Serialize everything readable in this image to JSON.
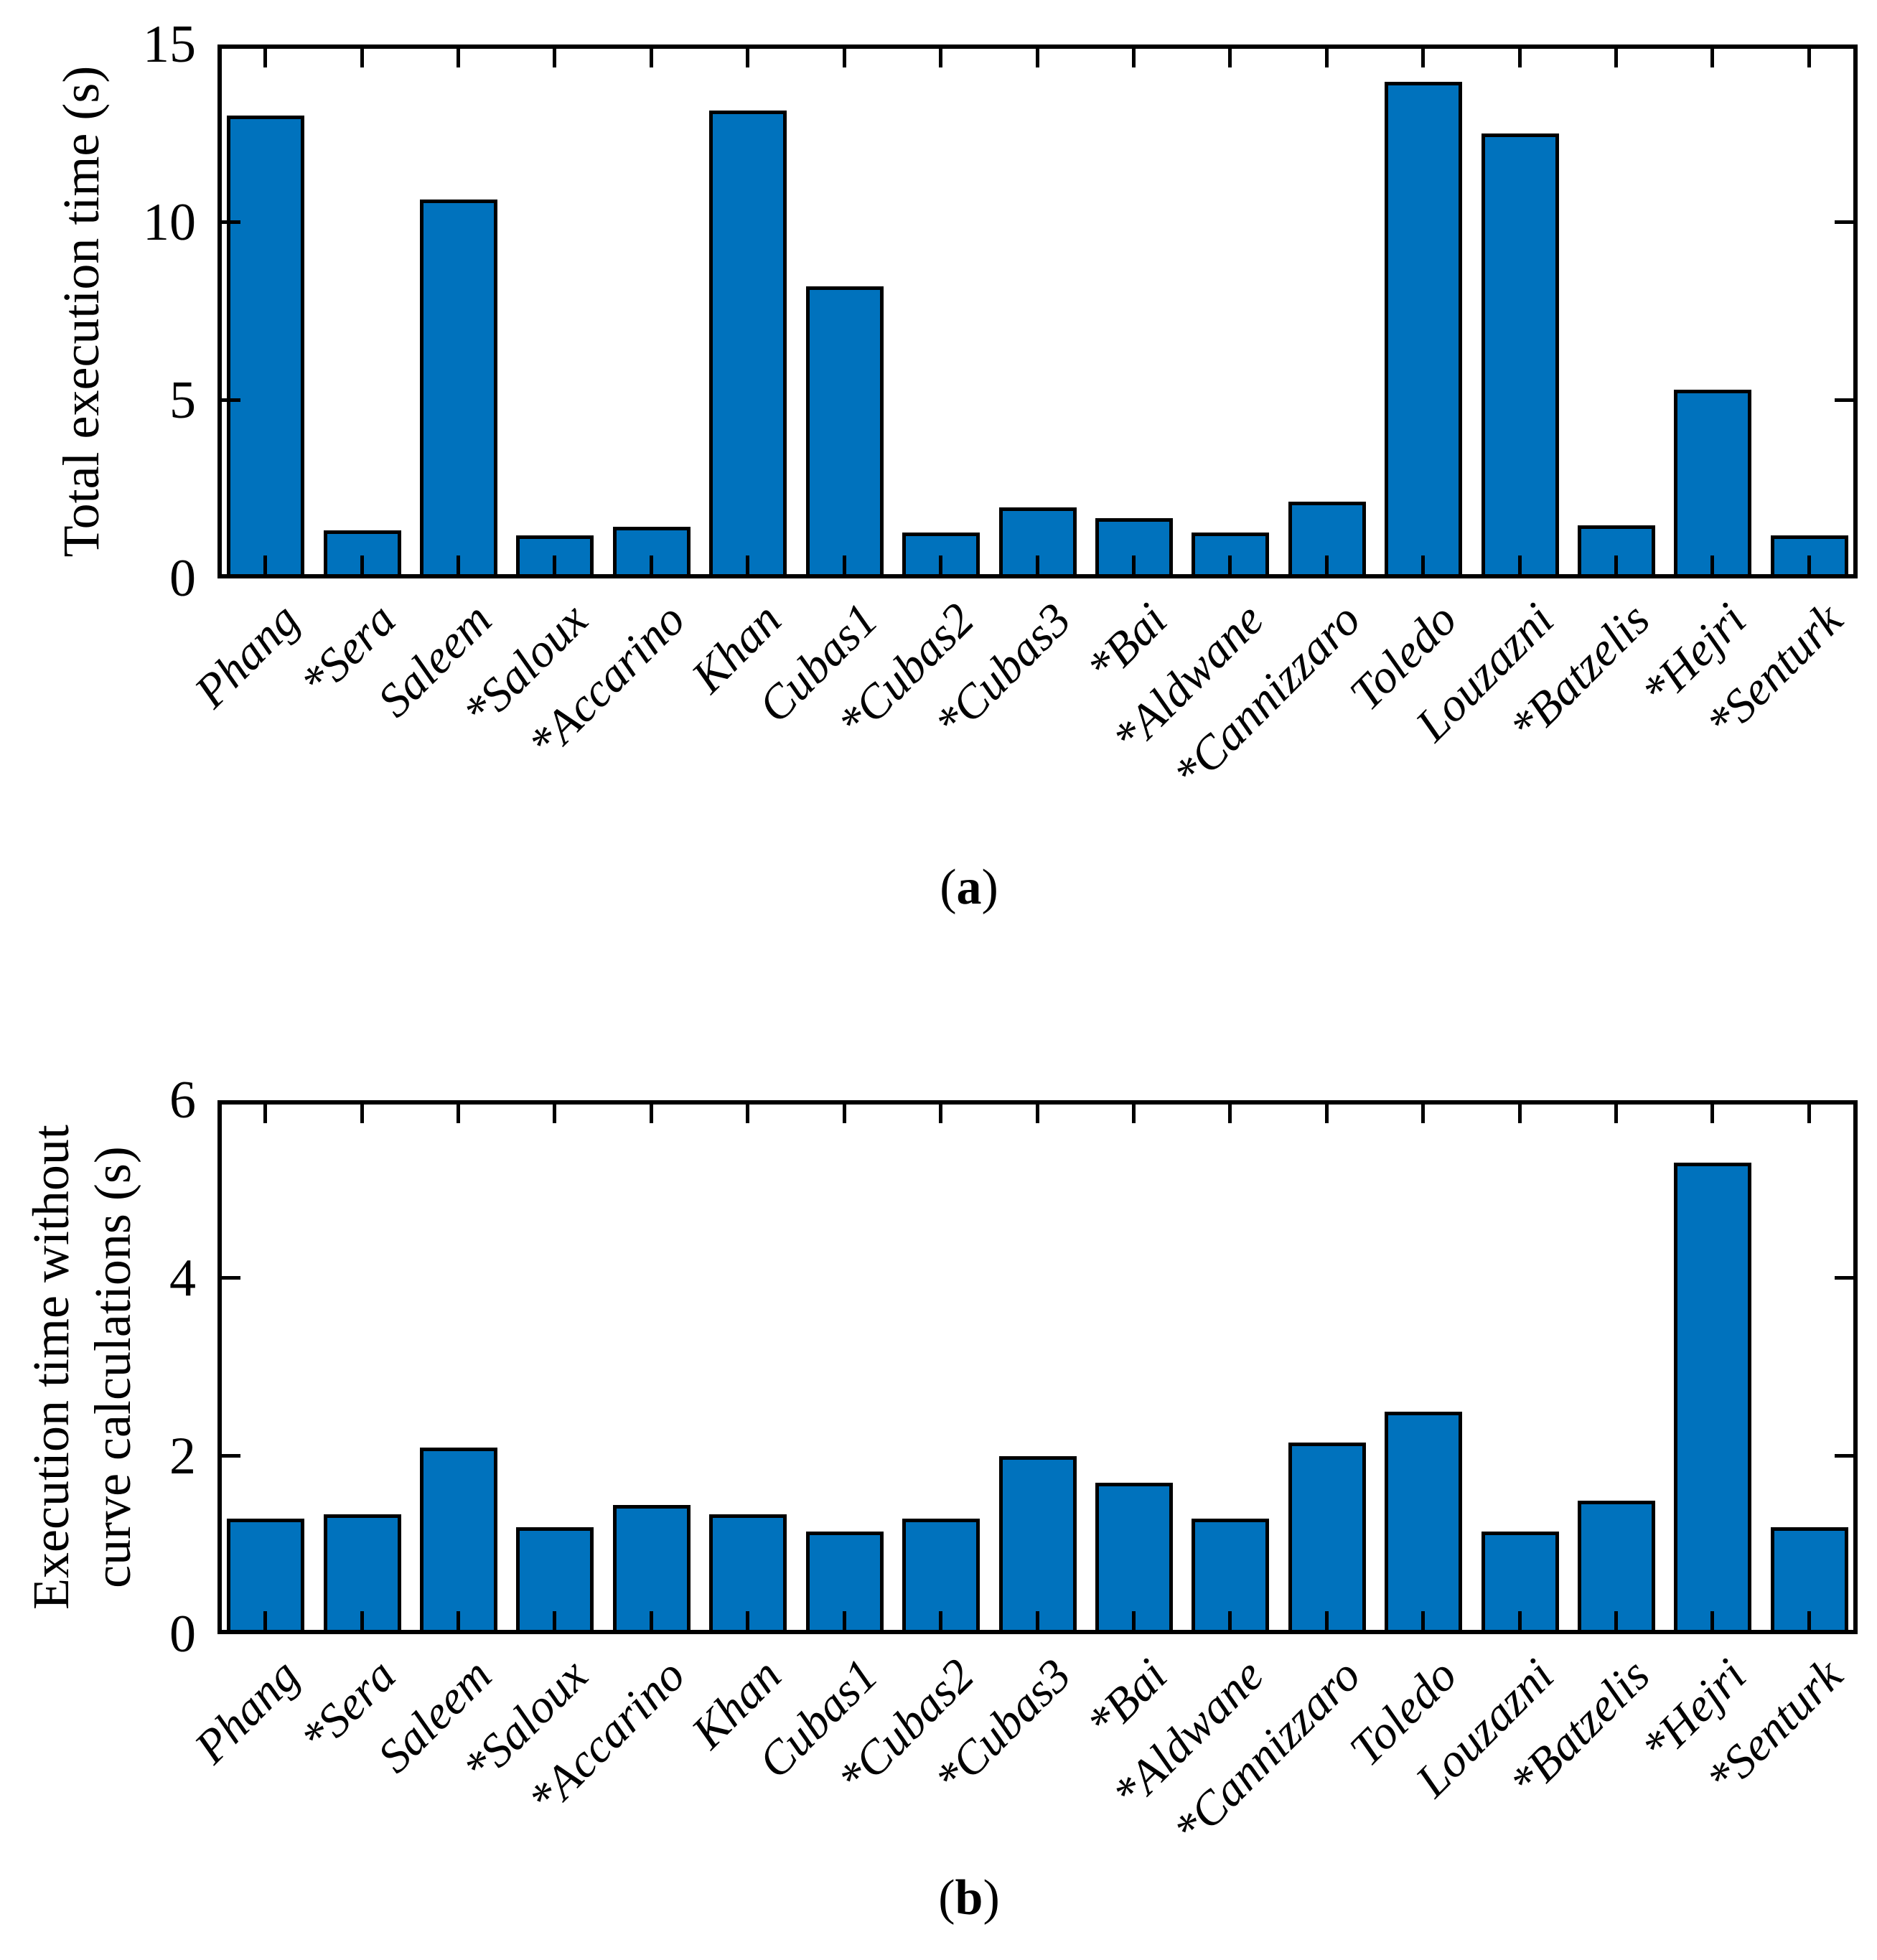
{
  "figure": {
    "background_color": "#ffffff",
    "bar_color": "#0072BD",
    "bar_edge_color": "#000000",
    "axis_color": "#000000",
    "caption_a": "(a)",
    "caption_b": "(b)"
  },
  "chart_data": [
    {
      "type": "bar",
      "panel": "a",
      "caption_letter": "a",
      "title": "",
      "xlabel": "",
      "ylabel": "Total execution time (s)",
      "ylabel_lines": [
        "Total execution time (s)"
      ],
      "ylim": [
        0,
        15
      ],
      "yticks": [
        0,
        5,
        10,
        15
      ],
      "grid": false,
      "legend": null,
      "categories": [
        "Phang",
        "*Sera",
        "Saleem",
        "*Saloux",
        "*Accarino",
        "Khan",
        "Cubas1",
        "*Cubas2",
        "*Cubas3",
        "*Bai",
        "*Aldwane",
        "*Cannizzaro",
        "Toledo",
        "Louzazni",
        "*Batzelis",
        "*Hejri",
        "*Senturk"
      ],
      "values": [
        13.0,
        1.35,
        10.65,
        1.2,
        1.45,
        13.15,
        8.2,
        1.3,
        2.0,
        1.7,
        1.3,
        2.15,
        13.95,
        12.5,
        1.5,
        5.3,
        1.2
      ]
    },
    {
      "type": "bar",
      "panel": "b",
      "caption_letter": "b",
      "title": "",
      "xlabel": "",
      "ylabel": "Execution time without curve calculations (s)",
      "ylabel_lines": [
        "Execution time without",
        "curve calculations (s)"
      ],
      "ylim": [
        0,
        6
      ],
      "yticks": [
        0,
        2,
        4,
        6
      ],
      "grid": false,
      "legend": null,
      "categories": [
        "Phang",
        "*Sera",
        "Saleem",
        "*Saloux",
        "*Accarino",
        "Khan",
        "Cubas1",
        "*Cubas2",
        "*Cubas3",
        "*Bai",
        "*Aldwane",
        "*Cannizzaro",
        "Toledo",
        "Louzazni",
        "*Batzelis",
        "*Hejri",
        "*Senturk"
      ],
      "values": [
        1.3,
        1.35,
        2.1,
        1.2,
        1.45,
        1.35,
        1.15,
        1.3,
        2.0,
        1.7,
        1.3,
        2.15,
        2.5,
        1.15,
        1.5,
        5.3,
        1.2
      ]
    }
  ]
}
